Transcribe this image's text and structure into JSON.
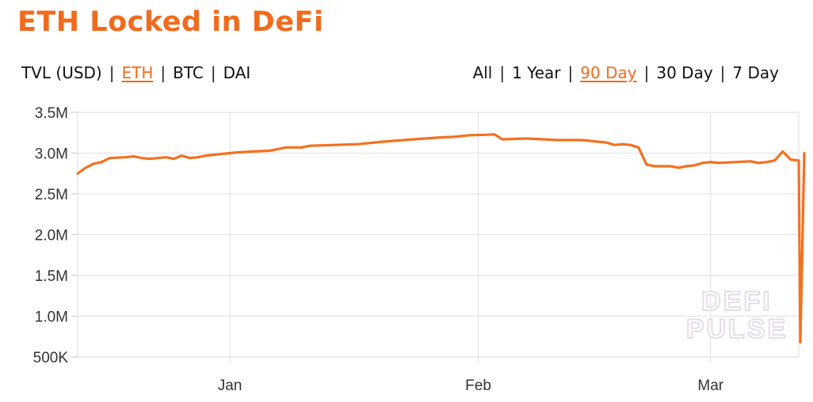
{
  "title": "ETH Locked in DeFi",
  "denomination_options": [
    {
      "label": "TVL (USD)",
      "active": false
    },
    {
      "label": "ETH",
      "active": true
    },
    {
      "label": "BTC",
      "active": false
    },
    {
      "label": "DAI",
      "active": false
    }
  ],
  "range_options": [
    {
      "label": "All",
      "active": false
    },
    {
      "label": "1 Year",
      "active": false
    },
    {
      "label": "90 Day",
      "active": true
    },
    {
      "label": "30 Day",
      "active": false
    },
    {
      "label": "7 Day",
      "active": false
    }
  ],
  "separator": "|",
  "watermark": [
    "DEFI",
    "PULSE"
  ],
  "colors": {
    "accent": "#f26b1d",
    "line": "#f5701f",
    "grid": "#e4e4e4",
    "watermark": "#e6dcea"
  },
  "chart_data": {
    "type": "line",
    "x_unit": "day",
    "x_range": [
      "2019-12-13",
      "2020-03-12"
    ],
    "y_range": [
      500000,
      3500000
    ],
    "y_ticks": [
      {
        "value": 3500000,
        "label": "3.5M"
      },
      {
        "value": 3000000,
        "label": "3.0M"
      },
      {
        "value": 2500000,
        "label": "2.5M"
      },
      {
        "value": 2000000,
        "label": "2.0M"
      },
      {
        "value": 1500000,
        "label": "1.5M"
      },
      {
        "value": 1000000,
        "label": "1.0M"
      },
      {
        "value": 500000,
        "label": "500K"
      }
    ],
    "x_ticks": [
      {
        "date": "2020-01-01",
        "label": "Jan"
      },
      {
        "date": "2020-02-01",
        "label": "Feb"
      },
      {
        "date": "2020-03-01",
        "label": "Mar"
      }
    ],
    "grid": true,
    "series": [
      {
        "values": [
          [
            "2019-12-13",
            2750000
          ],
          [
            "2019-12-14",
            2820000
          ],
          [
            "2019-12-15",
            2870000
          ],
          [
            "2019-12-16",
            2890000
          ],
          [
            "2019-12-17",
            2940000
          ],
          [
            "2019-12-18",
            2945000
          ],
          [
            "2019-12-19",
            2950000
          ],
          [
            "2019-12-20",
            2960000
          ],
          [
            "2019-12-21",
            2940000
          ],
          [
            "2019-12-22",
            2930000
          ],
          [
            "2019-12-23",
            2940000
          ],
          [
            "2019-12-24",
            2950000
          ],
          [
            "2019-12-25",
            2930000
          ],
          [
            "2019-12-26",
            2970000
          ],
          [
            "2019-12-27",
            2940000
          ],
          [
            "2019-12-28",
            2950000
          ],
          [
            "2019-12-29",
            2970000
          ],
          [
            "2019-12-30",
            2980000
          ],
          [
            "2019-12-31",
            2990000
          ],
          [
            "2020-01-02",
            3010000
          ],
          [
            "2020-01-04",
            3020000
          ],
          [
            "2020-01-06",
            3030000
          ],
          [
            "2020-01-08",
            3070000
          ],
          [
            "2020-01-10",
            3070000
          ],
          [
            "2020-01-11",
            3090000
          ],
          [
            "2020-01-14",
            3100000
          ],
          [
            "2020-01-17",
            3110000
          ],
          [
            "2020-01-20",
            3140000
          ],
          [
            "2020-01-24",
            3170000
          ],
          [
            "2020-01-27",
            3190000
          ],
          [
            "2020-01-29",
            3200000
          ],
          [
            "2020-01-31",
            3220000
          ],
          [
            "2020-02-02",
            3225000
          ],
          [
            "2020-02-03",
            3230000
          ],
          [
            "2020-02-04",
            3170000
          ],
          [
            "2020-02-07",
            3180000
          ],
          [
            "2020-02-11",
            3160000
          ],
          [
            "2020-02-14",
            3160000
          ],
          [
            "2020-02-16",
            3140000
          ],
          [
            "2020-02-17",
            3130000
          ],
          [
            "2020-02-18",
            3100000
          ],
          [
            "2020-02-19",
            3110000
          ],
          [
            "2020-02-20",
            3100000
          ],
          [
            "2020-02-21",
            3070000
          ],
          [
            "2020-02-22",
            2860000
          ],
          [
            "2020-02-23",
            2840000
          ],
          [
            "2020-02-25",
            2840000
          ],
          [
            "2020-02-26",
            2820000
          ],
          [
            "2020-02-27",
            2840000
          ],
          [
            "2020-02-28",
            2850000
          ],
          [
            "2020-02-29",
            2880000
          ],
          [
            "2020-03-01",
            2890000
          ],
          [
            "2020-03-02",
            2880000
          ],
          [
            "2020-03-04",
            2890000
          ],
          [
            "2020-03-06",
            2900000
          ],
          [
            "2020-03-07",
            2880000
          ],
          [
            "2020-03-08",
            2890000
          ],
          [
            "2020-03-09",
            2910000
          ],
          [
            "2020-03-10",
            3020000
          ],
          [
            "2020-03-11",
            2920000
          ],
          [
            "2020-03-12",
            2910000
          ],
          [
            "2020-03-12",
            680000
          ],
          [
            "2020-03-12",
            3000000
          ]
        ]
      }
    ]
  }
}
